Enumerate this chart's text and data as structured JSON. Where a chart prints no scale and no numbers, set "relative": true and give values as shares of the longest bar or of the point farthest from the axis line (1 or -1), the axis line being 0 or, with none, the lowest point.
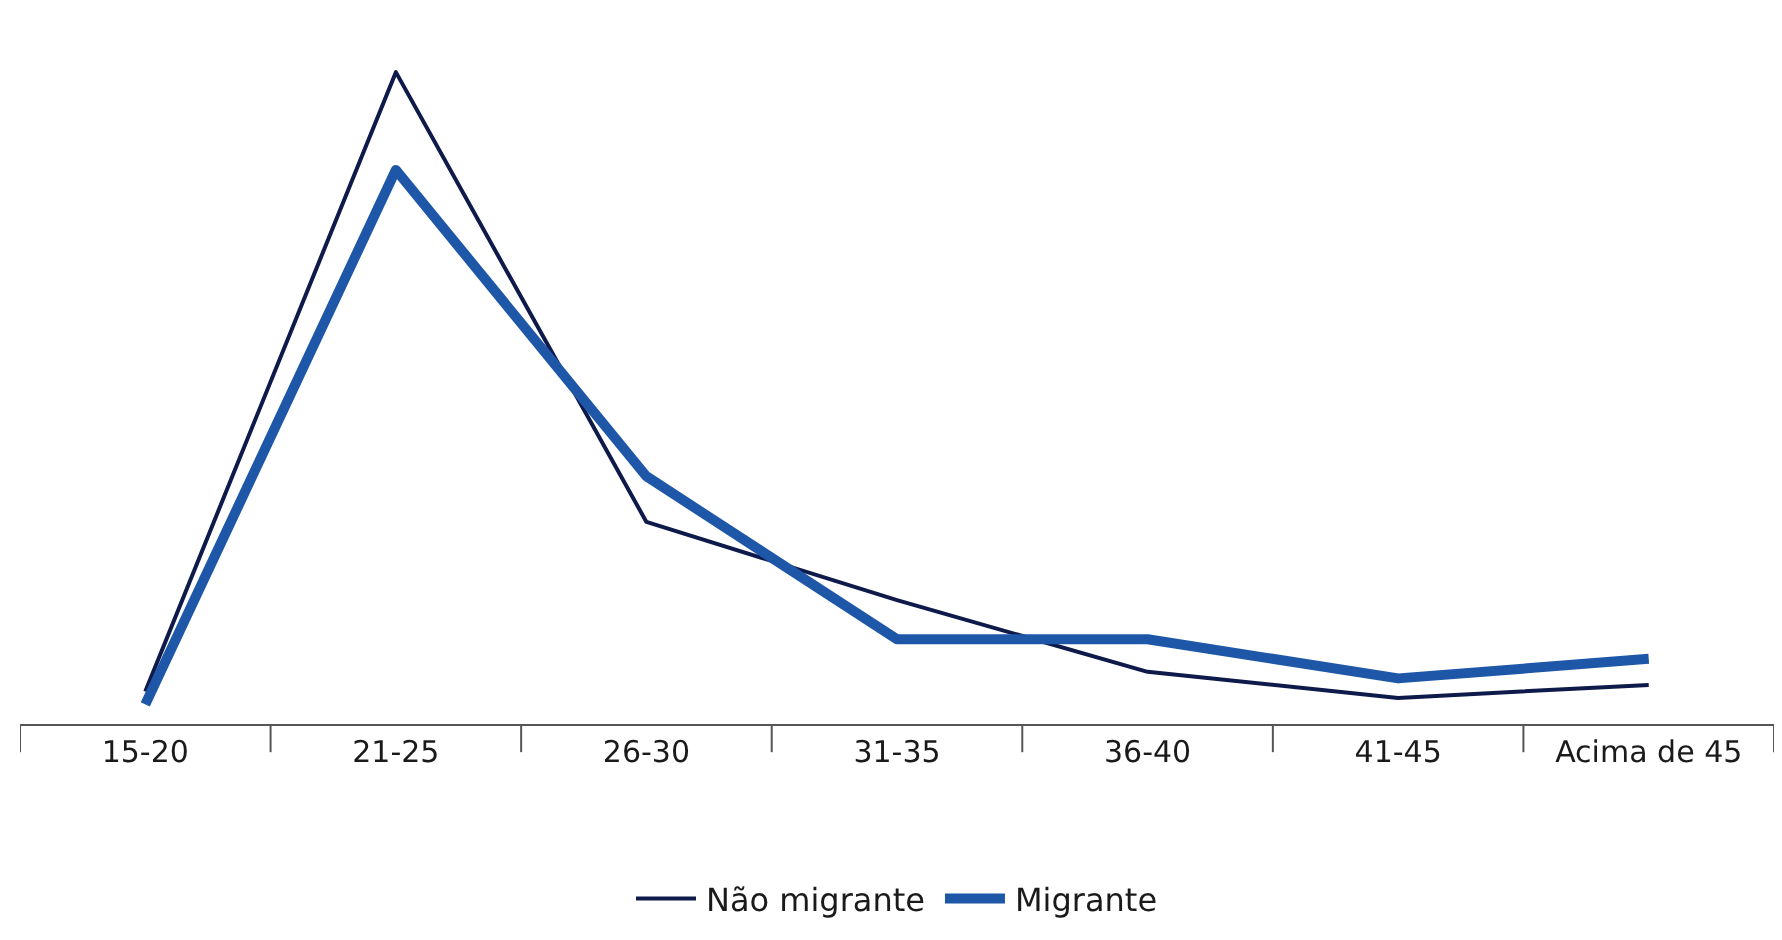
{
  "chart_data": {
    "type": "line",
    "relative": true,
    "categories": [
      "15-20",
      "21-25",
      "26-30",
      "31-35",
      "36-40",
      "41-45",
      "Acima de 45"
    ],
    "series": [
      {
        "name": "Não migrante",
        "color": "#0d1a4a",
        "values": [
          0.05,
          1,
          0.31,
          0.19,
          0.08,
          0.04,
          0.06
        ]
      },
      {
        "name": "Migrante",
        "color": "#1f57a8",
        "values": [
          0.03,
          0.85,
          0.38,
          0.13,
          0.13,
          0.07,
          0.1
        ]
      }
    ],
    "legend": "bottom",
    "marker": "none",
    "line_style": "solid"
  }
}
